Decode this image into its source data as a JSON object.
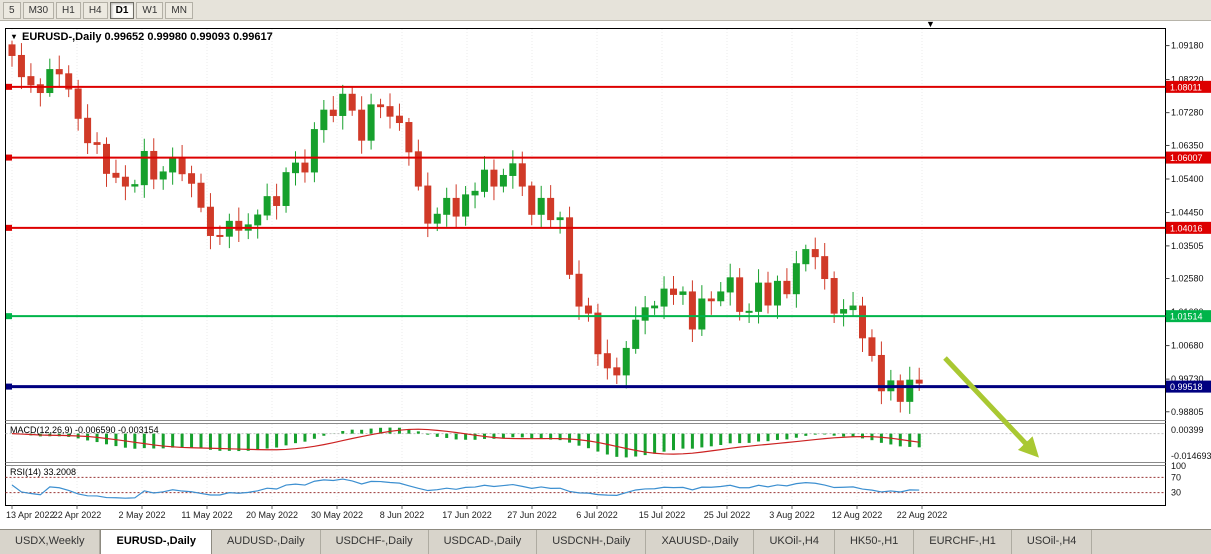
{
  "icons": {
    "chart_dropdown": "▾",
    "scroll_marker": "▼"
  },
  "toolbar": {
    "timeframes": [
      {
        "label": "5",
        "active": false
      },
      {
        "label": "M30",
        "active": false
      },
      {
        "label": "H1",
        "active": false
      },
      {
        "label": "H4",
        "active": false
      },
      {
        "label": "D1",
        "active": true
      },
      {
        "label": "W1",
        "active": false
      },
      {
        "label": "MN",
        "active": false
      }
    ]
  },
  "chart": {
    "title_text": "EURUSD-,Daily  0.99652 0.99980 0.99093 0.99617",
    "y_axis_labels": [
      "1.09180",
      "1.08220",
      "1.07280",
      "1.06350",
      "1.05400",
      "1.04450",
      "1.03505",
      "1.02580",
      "1.01630",
      "1.00680",
      "0.99730",
      "0.98805"
    ],
    "x_axis_labels": [
      "13 Apr 2022",
      "22 Apr 2022",
      "2 May 2022",
      "11 May 2022",
      "20 May 2022",
      "30 May 2022",
      "8 Jun 2022",
      "17 Jun 2022",
      "27 Jun 2022",
      "6 Jul 2022",
      "15 Jul 2022",
      "25 Jul 2022",
      "3 Aug 2022",
      "12 Aug 2022",
      "22 Aug 2022"
    ],
    "levels": [
      {
        "price": 1.08011,
        "label": "1.08011",
        "color": "#dd0000",
        "width": 2
      },
      {
        "price": 1.06007,
        "label": "1.06007",
        "color": "#dd0000",
        "width": 2
      },
      {
        "price": 1.04016,
        "label": "1.04016",
        "color": "#dd0000",
        "width": 2
      },
      {
        "price": 1.01514,
        "label": "1.01514",
        "color": "#00b44a",
        "width": 2
      },
      {
        "price": 0.99518,
        "label": "0.99518",
        "color": "#000080",
        "width": 3
      }
    ],
    "macd": {
      "label": "MACD(12,26,9) -0.006590 -0.003154",
      "histogram_color": "#16a02c",
      "signal_color": "#cc2222",
      "scale_top": "0.00399",
      "scale_bottom": "-0.014693"
    },
    "rsi": {
      "label": "RSI(14) 33.2008",
      "line_color": "#3c8fd0",
      "scale": [
        "100",
        "70",
        "30"
      ]
    }
  },
  "chart_data": {
    "type": "candlestick",
    "symbol": "EURUSD-",
    "timeframe": "Daily",
    "ohlc_readout": {
      "open": "0.99652",
      "high": "0.99980",
      "low": "0.99093",
      "close": "0.99617"
    },
    "date_range": [
      "13 Apr 2022",
      "26 Aug 2022"
    ],
    "y_range": [
      0.986,
      1.0965
    ],
    "horizontal_levels": [
      1.08011,
      1.06007,
      1.04016,
      1.01514,
      0.99518
    ],
    "colors": {
      "up": "#16a02c",
      "down": "#d03a28"
    },
    "first_open": 1.092,
    "closes": [
      1.089,
      1.083,
      1.0807,
      1.0785,
      1.085,
      1.0838,
      1.0795,
      1.0712,
      1.0643,
      1.0638,
      1.0556,
      1.0545,
      1.052,
      1.0524,
      1.0618,
      1.054,
      1.056,
      1.0597,
      1.0555,
      1.0528,
      1.046,
      1.038,
      1.0378,
      1.042,
      1.0395,
      1.041,
      1.0438,
      1.049,
      1.0465,
      1.0558,
      1.0585,
      1.056,
      1.068,
      1.0735,
      1.072,
      1.078,
      1.0735,
      1.065,
      1.075,
      1.0745,
      1.0718,
      1.07,
      1.0617,
      1.052,
      1.0415,
      1.044,
      1.0485,
      1.0435,
      1.0495,
      1.0505,
      1.0565,
      1.052,
      1.055,
      1.0583,
      1.052,
      1.044,
      1.0485,
      1.0425,
      1.043,
      1.027,
      1.018,
      1.016,
      1.0045,
      1.0005,
      0.9985,
      1.006,
      1.014,
      1.0175,
      1.018,
      1.0228,
      1.0213,
      1.022,
      1.0115,
      1.02,
      1.0195,
      1.022,
      1.026,
      1.0165,
      1.0165,
      1.0245,
      1.0183,
      1.025,
      1.0215,
      1.03,
      1.034,
      1.032,
      1.0258,
      1.016,
      1.017,
      1.018,
      1.009,
      1.004,
      0.994,
      0.9968,
      0.991,
      0.997,
      0.99617
    ],
    "indicators": [
      {
        "name": "MACD",
        "params": "12,26,9",
        "values": "-0.006590 -0.003154"
      },
      {
        "name": "RSI",
        "params": "14",
        "value": "33.2008"
      }
    ]
  },
  "annotations": {
    "arrow": {
      "color": "#a9c832",
      "from": [
        945,
        358
      ],
      "to": [
        1028,
        446
      ]
    }
  },
  "tabs": {
    "items": [
      {
        "label": "USDX,Weekly",
        "active": false
      },
      {
        "label": "EURUSD-,Daily",
        "active": true
      },
      {
        "label": "AUDUSD-,Daily",
        "active": false
      },
      {
        "label": "USDCHF-,Daily",
        "active": false
      },
      {
        "label": "USDCAD-,Daily",
        "active": false
      },
      {
        "label": "USDCNH-,Daily",
        "active": false
      },
      {
        "label": "XAUUSD-,Daily",
        "active": false
      },
      {
        "label": "UKOil-,H4",
        "active": false
      },
      {
        "label": "HK50-,H1",
        "active": false
      },
      {
        "label": "EURCHF-,H1",
        "active": false
      },
      {
        "label": "USOil-,H4",
        "active": false
      }
    ]
  }
}
